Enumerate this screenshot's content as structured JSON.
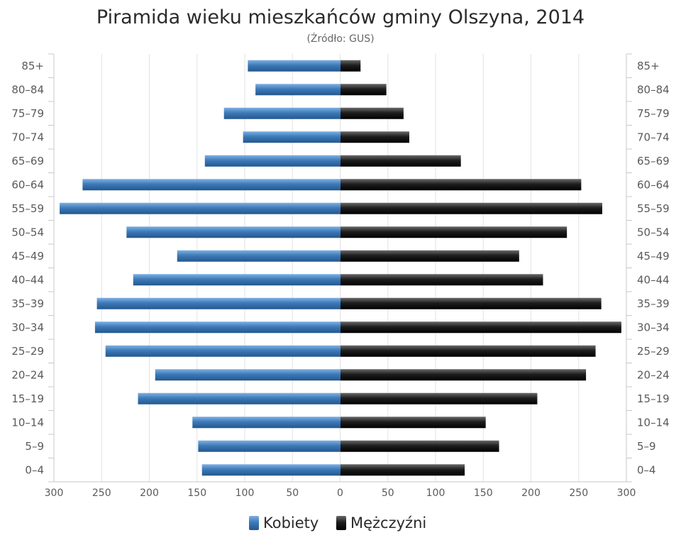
{
  "chart_data": {
    "type": "bar",
    "orientation": "horizontal-pyramid",
    "title": "Piramida wieku mieszkańców gminy Olszyna, 2014",
    "subtitle": "(Źródło: GUS)",
    "categories": [
      "85+",
      "80–84",
      "75–79",
      "70–74",
      "65–69",
      "60–64",
      "55–59",
      "50–54",
      "45–49",
      "40–44",
      "35–39",
      "30–34",
      "25–29",
      "20–24",
      "15–19",
      "10–14",
      "5–9",
      "0–4"
    ],
    "series": [
      {
        "name": "Kobiety",
        "side": "left",
        "color": "#3d7ab8",
        "values": [
          97,
          89,
          122,
          102,
          142,
          270,
          294,
          224,
          171,
          217,
          255,
          257,
          246,
          194,
          212,
          155,
          149,
          145
        ]
      },
      {
        "name": "Mężczyźni",
        "side": "right",
        "color": "#1a1a1a",
        "values": [
          21,
          48,
          66,
          72,
          126,
          252,
          274,
          237,
          187,
          212,
          273,
          294,
          267,
          257,
          206,
          152,
          166,
          130
        ]
      }
    ],
    "xlim": [
      -300,
      300
    ],
    "xticks": [
      "300",
      "250",
      "200",
      "150",
      "100",
      "50",
      "0",
      "50",
      "100",
      "150",
      "200",
      "250",
      "300"
    ],
    "grid": true,
    "legend": "bottom-center"
  }
}
